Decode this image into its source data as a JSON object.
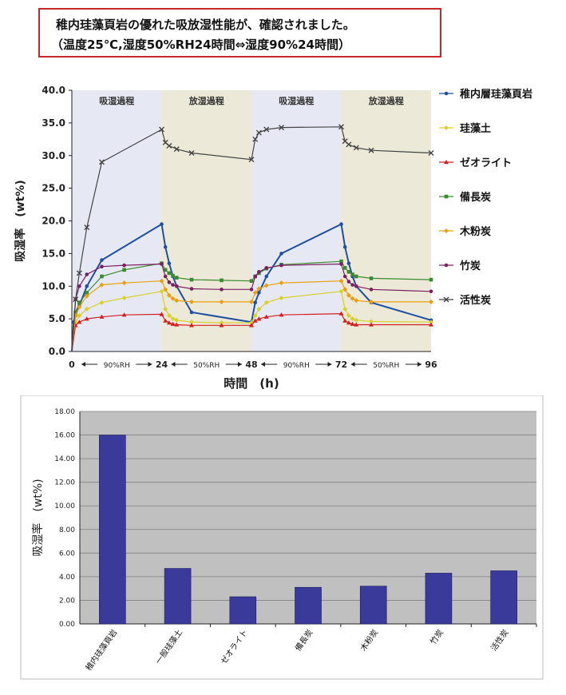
{
  "header": {
    "line1": "稚内珪藻頁岩の優れた吸放湿性能が、確認されました。",
    "line2": "（温度25℃,湿度50%RH24時間⇔湿度90%24時間）"
  },
  "chart_data": [
    {
      "type": "line",
      "xlabel": "時間　(h)",
      "ylabel": "吸湿率　(wt%)",
      "xlim": [
        0,
        96
      ],
      "ylim": [
        0,
        40
      ],
      "x_ticks": [
        "0",
        "24",
        "48",
        "72",
        "96"
      ],
      "y_ticks": [
        "0.0",
        "5.0",
        "10.0",
        "15.0",
        "20.0",
        "25.0",
        "30.0",
        "35.0",
        "40.0"
      ],
      "axis_annotations": [
        {
          "from": 0,
          "to": 24,
          "label": "90%RH"
        },
        {
          "from": 24,
          "to": 48,
          "label": "50%RH"
        },
        {
          "from": 48,
          "to": 72,
          "label": "90%RH"
        },
        {
          "from": 72,
          "to": 96,
          "label": "50%RH"
        }
      ],
      "phases": [
        {
          "from": 0,
          "to": 24,
          "label": "吸湿過程",
          "color": "#e6e9f4"
        },
        {
          "from": 24,
          "to": 48,
          "label": "放湿過程",
          "color": "#ece9d8"
        },
        {
          "from": 48,
          "to": 72,
          "label": "吸湿過程",
          "color": "#e6e9f4"
        },
        {
          "from": 72,
          "to": 96,
          "label": "放湿過程",
          "color": "#ece9d8"
        }
      ],
      "legend_position": "right",
      "series": [
        {
          "name": "稚内層珪藻頁岩",
          "color": "#1f4fa0",
          "marker": "circle",
          "points": [
            [
              0,
              0
            ],
            [
              0.5,
              4.5
            ],
            [
              1,
              5.5
            ],
            [
              2,
              7
            ],
            [
              4,
              10
            ],
            [
              8,
              14
            ],
            [
              24,
              19.5
            ],
            [
              25,
              16
            ],
            [
              26,
              13.5
            ],
            [
              27,
              11.5
            ],
            [
              28,
              10
            ],
            [
              32,
              6
            ],
            [
              48,
              4.5
            ],
            [
              49,
              7.5
            ],
            [
              50,
              9
            ],
            [
              52,
              11.5
            ],
            [
              56,
              15
            ],
            [
              72,
              19.5
            ],
            [
              73,
              16
            ],
            [
              74,
              13.5
            ],
            [
              75,
              11.5
            ],
            [
              76,
              10
            ],
            [
              80,
              7.5
            ],
            [
              96,
              4.8
            ]
          ]
        },
        {
          "name": "珪藻土",
          "color": "#d8d030",
          "marker": "diamond",
          "points": [
            [
              0,
              0
            ],
            [
              1,
              4.5
            ],
            [
              2,
              5.5
            ],
            [
              4,
              6.5
            ],
            [
              8,
              7.5
            ],
            [
              14,
              8.2
            ],
            [
              24,
              9.2
            ],
            [
              25,
              6.5
            ],
            [
              26,
              5.5
            ],
            [
              27,
              5
            ],
            [
              28,
              4.8
            ],
            [
              32,
              4.5
            ],
            [
              40,
              4.4
            ],
            [
              48,
              4.4
            ],
            [
              49,
              5.5
            ],
            [
              50,
              6.5
            ],
            [
              52,
              7.5
            ],
            [
              56,
              8.2
            ],
            [
              72,
              9.2
            ],
            [
              73,
              6.5
            ],
            [
              74,
              5.5
            ],
            [
              75,
              5
            ],
            [
              76,
              4.8
            ],
            [
              80,
              4.6
            ],
            [
              96,
              4.5
            ]
          ]
        },
        {
          "name": "ゼオライト",
          "color": "#d02020",
          "marker": "triangle",
          "points": [
            [
              0,
              0
            ],
            [
              1,
              4
            ],
            [
              2,
              4.5
            ],
            [
              4,
              5
            ],
            [
              8,
              5.3
            ],
            [
              14,
              5.6
            ],
            [
              24,
              5.7
            ],
            [
              25,
              4.7
            ],
            [
              26,
              4.4
            ],
            [
              27,
              4.2
            ],
            [
              28,
              4.1
            ],
            [
              32,
              4
            ],
            [
              40,
              4
            ],
            [
              48,
              4
            ],
            [
              49,
              4.7
            ],
            [
              50,
              5
            ],
            [
              52,
              5.3
            ],
            [
              56,
              5.6
            ],
            [
              72,
              5.8
            ],
            [
              73,
              4.7
            ],
            [
              74,
              4.4
            ],
            [
              75,
              4.2
            ],
            [
              76,
              4.1
            ],
            [
              80,
              4.1
            ],
            [
              96,
              4.1
            ]
          ]
        },
        {
          "name": "備長炭",
          "color": "#3c8a30",
          "marker": "square",
          "points": [
            [
              0,
              0
            ],
            [
              1,
              6
            ],
            [
              2,
              7.5
            ],
            [
              4,
              9
            ],
            [
              8,
              11.5
            ],
            [
              14,
              12.5
            ],
            [
              24,
              13.5
            ],
            [
              25,
              12.5
            ],
            [
              26,
              12
            ],
            [
              27,
              11.6
            ],
            [
              28,
              11.3
            ],
            [
              32,
              11
            ],
            [
              40,
              10.9
            ],
            [
              48,
              10.8
            ],
            [
              49,
              11.5
            ],
            [
              50,
              12
            ],
            [
              52,
              12.7
            ],
            [
              56,
              13.3
            ],
            [
              72,
              13.8
            ],
            [
              73,
              12.8
            ],
            [
              74,
              12.2
            ],
            [
              75,
              11.8
            ],
            [
              76,
              11.5
            ],
            [
              80,
              11.2
            ],
            [
              96,
              11
            ]
          ]
        },
        {
          "name": "木粉炭",
          "color": "#e8a010",
          "marker": "diamond",
          "points": [
            [
              0,
              0
            ],
            [
              1,
              5.5
            ],
            [
              2,
              6.8
            ],
            [
              4,
              8.5
            ],
            [
              8,
              10.2
            ],
            [
              14,
              10.5
            ],
            [
              24,
              10.8
            ],
            [
              25,
              9.5
            ],
            [
              26,
              8.6
            ],
            [
              27,
              8.1
            ],
            [
              28,
              7.8
            ],
            [
              32,
              7.6
            ],
            [
              40,
              7.6
            ],
            [
              48,
              7.6
            ],
            [
              49,
              9
            ],
            [
              50,
              9.6
            ],
            [
              52,
              10.1
            ],
            [
              56,
              10.5
            ],
            [
              72,
              10.8
            ],
            [
              73,
              9.5
            ],
            [
              74,
              8.6
            ],
            [
              75,
              8.1
            ],
            [
              76,
              7.8
            ],
            [
              80,
              7.6
            ],
            [
              96,
              7.6
            ]
          ]
        },
        {
          "name": "竹炭",
          "color": "#7a2060",
          "marker": "circle",
          "points": [
            [
              0,
              0
            ],
            [
              1,
              8
            ],
            [
              2,
              10
            ],
            [
              4,
              11.8
            ],
            [
              8,
              13
            ],
            [
              14,
              13.2
            ],
            [
              24,
              13.4
            ],
            [
              25,
              11.5
            ],
            [
              26,
              10.6
            ],
            [
              27,
              10.2
            ],
            [
              28,
              10
            ],
            [
              32,
              9.6
            ],
            [
              40,
              9.5
            ],
            [
              48,
              9.5
            ],
            [
              49,
              11.5
            ],
            [
              50,
              12.2
            ],
            [
              52,
              12.8
            ],
            [
              56,
              13.2
            ],
            [
              72,
              13.4
            ],
            [
              73,
              11.5
            ],
            [
              74,
              10.7
            ],
            [
              75,
              10.2
            ],
            [
              76,
              10
            ],
            [
              80,
              9.5
            ],
            [
              96,
              9.2
            ]
          ]
        },
        {
          "name": "活性炭",
          "color": "#444444",
          "marker": "x",
          "points": [
            [
              0,
              0
            ],
            [
              1,
              8
            ],
            [
              2,
              12
            ],
            [
              4,
              19
            ],
            [
              8,
              29
            ],
            [
              24,
              34
            ],
            [
              25,
              32
            ],
            [
              26,
              31.5
            ],
            [
              28,
              31
            ],
            [
              32,
              30.4
            ],
            [
              48,
              29.4
            ],
            [
              49,
              32.5
            ],
            [
              50,
              33.5
            ],
            [
              52,
              34
            ],
            [
              56,
              34.3
            ],
            [
              72,
              34.4
            ],
            [
              73,
              32.2
            ],
            [
              74,
              31.7
            ],
            [
              76,
              31.2
            ],
            [
              80,
              30.8
            ],
            [
              96,
              30.4
            ]
          ]
        }
      ]
    },
    {
      "type": "bar",
      "ylabel": "吸湿率　(wt%)",
      "ylim": [
        0,
        18
      ],
      "y_ticks": [
        "0.00",
        "2.00",
        "4.00",
        "6.00",
        "8.00",
        "10.00",
        "12.00",
        "14.00",
        "16.00",
        "18.00"
      ],
      "categories": [
        "稚内珪藻頁岩",
        "一般珪藻土",
        "ゼオライト",
        "備長炭",
        "木粉炭",
        "竹炭",
        "活性炭"
      ],
      "values": [
        16.0,
        4.7,
        2.3,
        3.1,
        3.2,
        4.3,
        4.5
      ],
      "bar_color": "#3a3a9a",
      "plot_bg": "#c0c0c0",
      "grid": true
    }
  ]
}
